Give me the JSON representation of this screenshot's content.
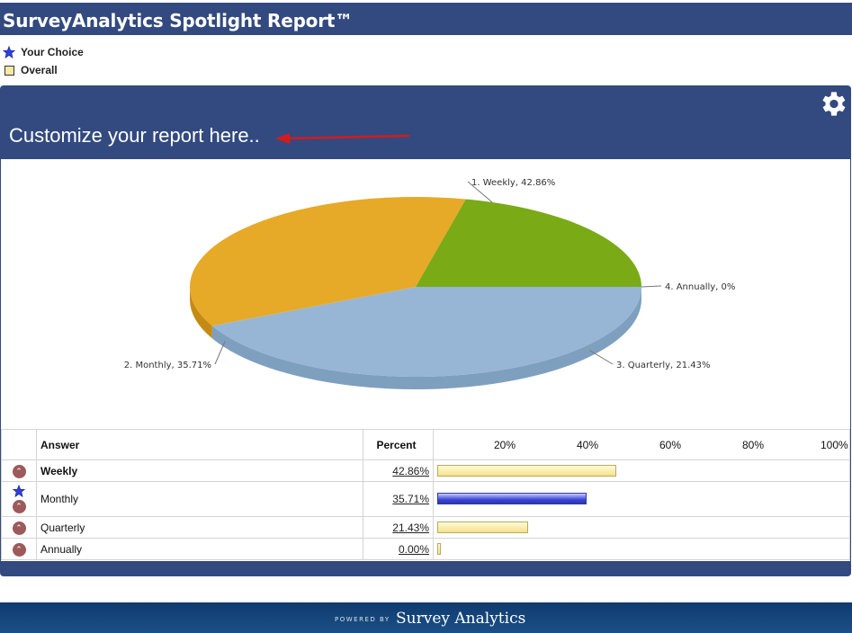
{
  "header": {
    "title": "SurveyAnalytics Spotlight Report™"
  },
  "legend": {
    "your_choice": "Your Choice",
    "overall": "Overall"
  },
  "panel": {
    "customize_text": "Customize your report here.."
  },
  "chart_data": {
    "type": "pie",
    "categories": [
      "Weekly",
      "Monthly",
      "Quarterly",
      "Annually"
    ],
    "values": [
      42.86,
      35.71,
      21.43,
      0
    ],
    "labels": [
      "1. Weekly, 42.86%",
      "2. Monthly, 35.71%",
      "3. Quarterly, 21.43%",
      "4. Annually, 0%"
    ],
    "colors": [
      "#97b6d5",
      "#e6aa28",
      "#7aaa16",
      "#4f6fb5"
    ]
  },
  "table": {
    "col_answer": "Answer",
    "col_percent": "Percent",
    "ticks": [
      "20%",
      "40%",
      "60%",
      "80%",
      "100%"
    ],
    "rows": [
      {
        "answer": "Weekly",
        "percent": "42.86%",
        "value": 0.4286,
        "bold": true,
        "your_choice": false
      },
      {
        "answer": "Monthly",
        "percent": "35.71%",
        "value": 0.3571,
        "bold": false,
        "your_choice": true
      },
      {
        "answer": "Quarterly",
        "percent": "21.43%",
        "value": 0.2143,
        "bold": false,
        "your_choice": false
      },
      {
        "answer": "Annually",
        "percent": "0.00%",
        "value": 0.0,
        "bold": false,
        "your_choice": false
      }
    ]
  },
  "footer": {
    "powered": "POWERED BY",
    "brand": "Survey Analytics"
  }
}
